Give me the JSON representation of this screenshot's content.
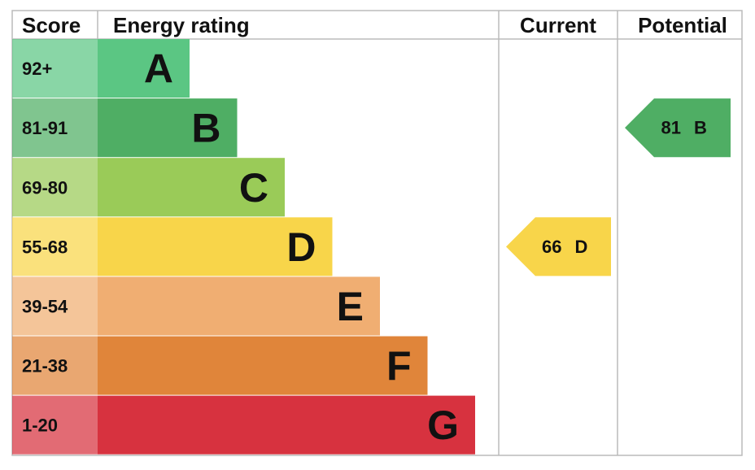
{
  "header": {
    "score": "Score",
    "rating": "Energy rating",
    "current": "Current",
    "potential": "Potential"
  },
  "bands": [
    {
      "score": "92+",
      "letter": "A",
      "color": "#5bc683"
    },
    {
      "score": "81-91",
      "letter": "B",
      "color": "#4fae64"
    },
    {
      "score": "69-80",
      "letter": "C",
      "color": "#9acb58"
    },
    {
      "score": "55-68",
      "letter": "D",
      "color": "#f8d54a"
    },
    {
      "score": "39-54",
      "letter": "E",
      "color": "#f0ae72"
    },
    {
      "score": "21-38",
      "letter": "F",
      "color": "#e0853a"
    },
    {
      "score": "1-20",
      "letter": "G",
      "color": "#d7323f"
    }
  ],
  "current": {
    "value": 66,
    "letter": "D"
  },
  "potential": {
    "value": 81,
    "letter": "B"
  }
}
